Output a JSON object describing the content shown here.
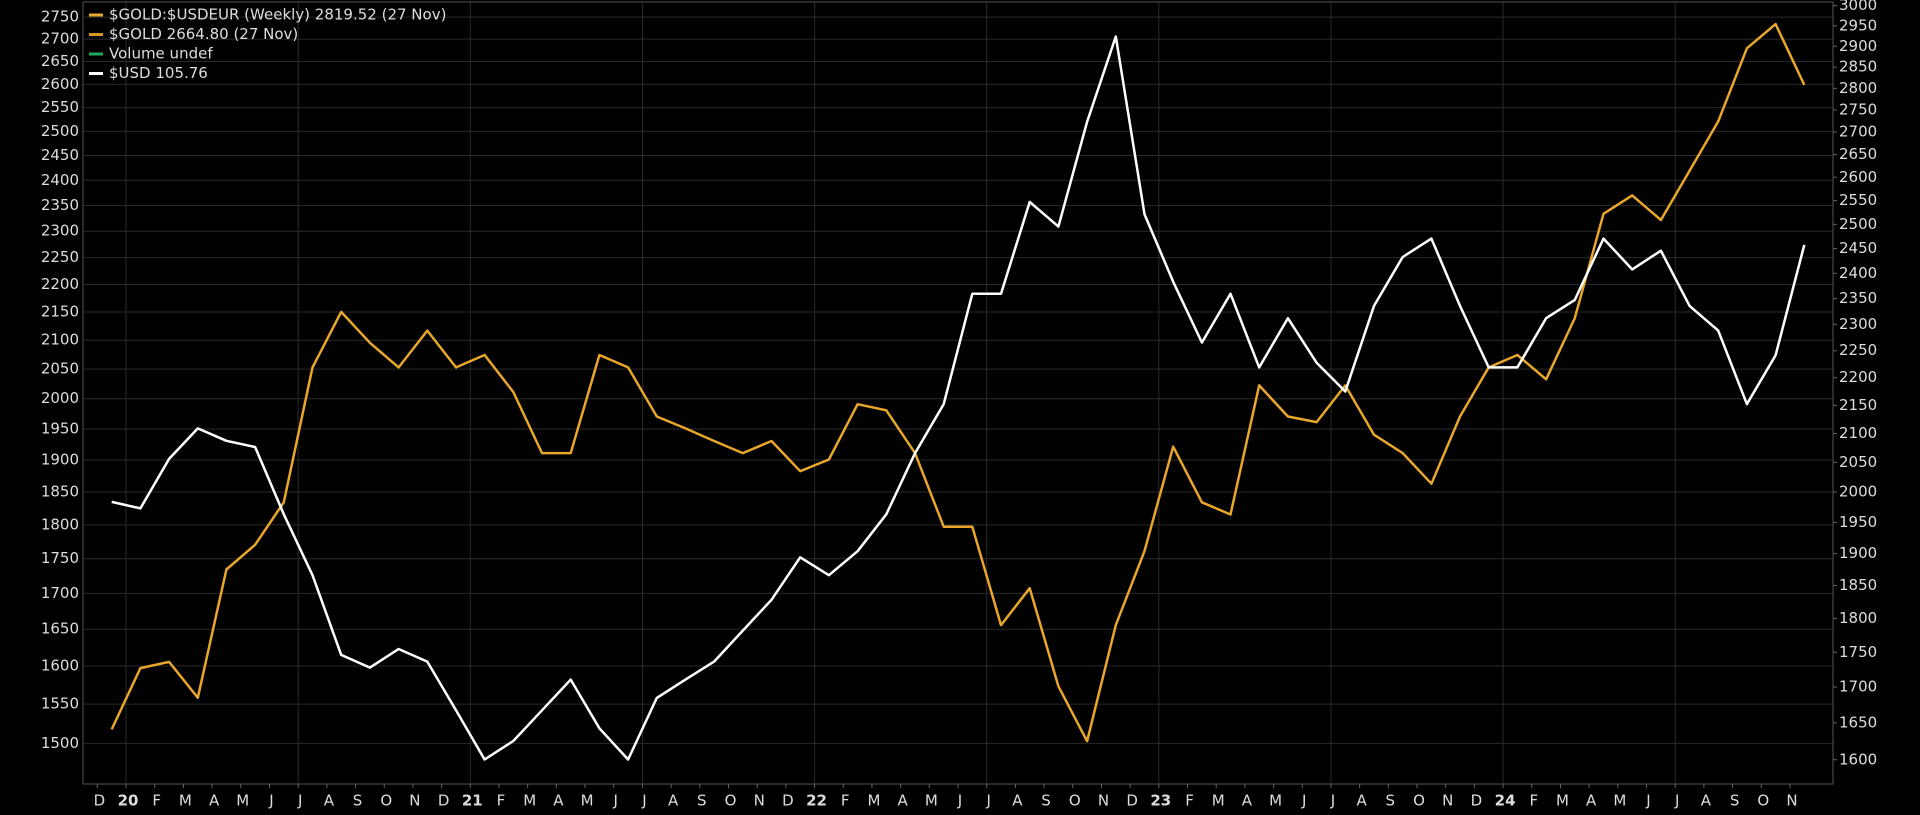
{
  "chart_data": {
    "type": "line",
    "log_scale": true,
    "grid": true,
    "legend_position": "top-left",
    "x": [
      "2019-12",
      "2020-01",
      "2020-02",
      "2020-03",
      "2020-04",
      "2020-05",
      "2020-06",
      "2020-07",
      "2020-08",
      "2020-09",
      "2020-10",
      "2020-11",
      "2020-12",
      "2021-01",
      "2021-02",
      "2021-03",
      "2021-04",
      "2021-05",
      "2021-06",
      "2021-07",
      "2021-08",
      "2021-09",
      "2021-10",
      "2021-11",
      "2021-12",
      "2022-01",
      "2022-02",
      "2022-03",
      "2022-04",
      "2022-05",
      "2022-06",
      "2022-07",
      "2022-08",
      "2022-09",
      "2022-10",
      "2022-11",
      "2022-12",
      "2023-01",
      "2023-02",
      "2023-03",
      "2023-04",
      "2023-05",
      "2023-06",
      "2023-07",
      "2023-08",
      "2023-09",
      "2023-10",
      "2023-11",
      "2023-12",
      "2024-01",
      "2024-02",
      "2024-03",
      "2024-04",
      "2024-05",
      "2024-06",
      "2024-07",
      "2024-08",
      "2024-09",
      "2024-10",
      "2024-11"
    ],
    "xlim": [
      "2019-11",
      "2024-12"
    ],
    "xticks": [
      {
        "value": "2019-12",
        "label": "D"
      },
      {
        "value": "2020-01",
        "label": "20"
      },
      {
        "value": "2020-02",
        "label": "F"
      },
      {
        "value": "2020-03",
        "label": "M"
      },
      {
        "value": "2020-04",
        "label": "A"
      },
      {
        "value": "2020-05",
        "label": "M"
      },
      {
        "value": "2020-06",
        "label": "J"
      },
      {
        "value": "2020-07",
        "label": "J"
      },
      {
        "value": "2020-08",
        "label": "A"
      },
      {
        "value": "2020-09",
        "label": "S"
      },
      {
        "value": "2020-10",
        "label": "O"
      },
      {
        "value": "2020-11",
        "label": "N"
      },
      {
        "value": "2020-12",
        "label": "D"
      },
      {
        "value": "2021-01",
        "label": "21"
      },
      {
        "value": "2021-02",
        "label": "F"
      },
      {
        "value": "2021-03",
        "label": "M"
      },
      {
        "value": "2021-04",
        "label": "A"
      },
      {
        "value": "2021-05",
        "label": "M"
      },
      {
        "value": "2021-06",
        "label": "J"
      },
      {
        "value": "2021-07",
        "label": "J"
      },
      {
        "value": "2021-08",
        "label": "A"
      },
      {
        "value": "2021-09",
        "label": "S"
      },
      {
        "value": "2021-10",
        "label": "O"
      },
      {
        "value": "2021-11",
        "label": "N"
      },
      {
        "value": "2021-12",
        "label": "D"
      },
      {
        "value": "2022-01",
        "label": "22"
      },
      {
        "value": "2022-02",
        "label": "F"
      },
      {
        "value": "2022-03",
        "label": "M"
      },
      {
        "value": "2022-04",
        "label": "A"
      },
      {
        "value": "2022-05",
        "label": "M"
      },
      {
        "value": "2022-06",
        "label": "J"
      },
      {
        "value": "2022-07",
        "label": "J"
      },
      {
        "value": "2022-08",
        "label": "A"
      },
      {
        "value": "2022-09",
        "label": "S"
      },
      {
        "value": "2022-10",
        "label": "O"
      },
      {
        "value": "2022-11",
        "label": "N"
      },
      {
        "value": "2022-12",
        "label": "D"
      },
      {
        "value": "2023-01",
        "label": "23"
      },
      {
        "value": "2023-02",
        "label": "F"
      },
      {
        "value": "2023-03",
        "label": "M"
      },
      {
        "value": "2023-04",
        "label": "A"
      },
      {
        "value": "2023-05",
        "label": "M"
      },
      {
        "value": "2023-06",
        "label": "J"
      },
      {
        "value": "2023-07",
        "label": "J"
      },
      {
        "value": "2023-08",
        "label": "A"
      },
      {
        "value": "2023-09",
        "label": "S"
      },
      {
        "value": "2023-10",
        "label": "O"
      },
      {
        "value": "2023-11",
        "label": "N"
      },
      {
        "value": "2023-12",
        "label": "D"
      },
      {
        "value": "2024-01",
        "label": "24"
      },
      {
        "value": "2024-02",
        "label": "F"
      },
      {
        "value": "2024-03",
        "label": "M"
      },
      {
        "value": "2024-04",
        "label": "A"
      },
      {
        "value": "2024-05",
        "label": "M"
      },
      {
        "value": "2024-06",
        "label": "J"
      },
      {
        "value": "2024-07",
        "label": "J"
      },
      {
        "value": "2024-08",
        "label": "A"
      },
      {
        "value": "2024-09",
        "label": "S"
      },
      {
        "value": "2024-10",
        "label": "O"
      },
      {
        "value": "2024-11",
        "label": "N"
      }
    ],
    "ylim": [
      1450,
      2785
    ],
    "yticks": [
      1500,
      1550,
      1600,
      1650,
      1700,
      1750,
      1800,
      1850,
      1900,
      1950,
      2000,
      2050,
      2100,
      2150,
      2200,
      2250,
      2300,
      2350,
      2400,
      2450,
      2500,
      2550,
      2600,
      2650,
      2700,
      2750
    ],
    "y2lim": [
      1568,
      3009
    ],
    "y2ticks": [
      1600,
      1650,
      1700,
      1750,
      1800,
      1850,
      1900,
      1950,
      2000,
      2050,
      2100,
      2150,
      2200,
      2250,
      2300,
      2350,
      2400,
      2450,
      2500,
      2550,
      2600,
      2650,
      2700,
      2750,
      2800,
      2850,
      2900,
      2950,
      3000
    ],
    "series": [
      {
        "name": "$GOLD:$USDEUR (Weekly) 2819.52 (27 Nov)",
        "color": "#e8a62a",
        "axis": "y2",
        "values": [
          1641,
          1727,
          1736,
          1685,
          1875,
          1914,
          1983,
          2219,
          2324,
          2265,
          2219,
          2288,
          2219,
          2242,
          2174,
          2066,
          2066,
          2242,
          2219,
          2130,
          2109,
          2087,
          2066,
          2087,
          2035,
          2055,
          2152,
          2141,
          2066,
          1943,
          1943,
          1790,
          1846,
          1701,
          1625,
          1790,
          1904,
          2077,
          1983,
          1963,
          2186,
          2130,
          2120,
          2186,
          2098,
          2066,
          2014,
          2130,
          2219,
          2242,
          2197,
          2312,
          2522,
          2561,
          2509,
          2614,
          2724,
          2895,
          2954,
          2808
        ]
      },
      {
        "name": "$USD 105.76",
        "color": "#ffffff",
        "values": [
          1835,
          1825,
          1902,
          1951,
          1931,
          1921,
          1816,
          1726,
          1615,
          1598,
          1623,
          1606,
          1542,
          1480,
          1503,
          1542,
          1582,
          1519,
          1480,
          1558,
          1582,
          1606,
          1648,
          1691,
          1752,
          1726,
          1761,
          1816,
          1911,
          1991,
          2183,
          2183,
          2357,
          2309,
          2520,
          2706,
          2333,
          2205,
          2096,
          2183,
          2053,
          2139,
          2061,
          2012,
          2161,
          2251,
          2286,
          2161,
          2053,
          2053,
          2139,
          2172,
          2286,
          2228,
          2263,
          2161,
          2117,
          1991,
          2074,
          2274
        ]
      }
    ],
    "legend_extra": [
      {
        "text": "$GOLD 2664.80 (27 Nov)",
        "color": "#d4941e"
      },
      {
        "text": "Volume undef",
        "color": "#1faa5a"
      }
    ]
  }
}
